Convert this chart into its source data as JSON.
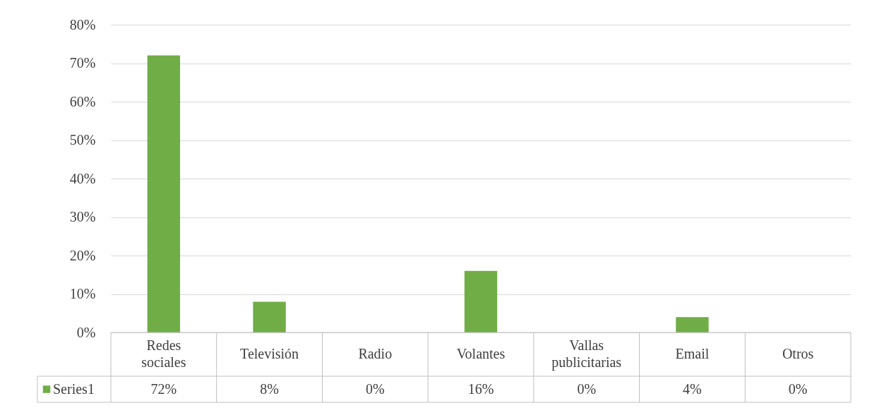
{
  "chart_data": {
    "type": "bar",
    "categories": [
      "Redes sociales",
      "Televisión",
      "Radio",
      "Volantes",
      "Vallas publicitarias",
      "Email",
      "Otros"
    ],
    "series": [
      {
        "name": "Series1",
        "color": "#70ad47",
        "values": [
          72,
          8,
          0,
          16,
          0,
          4,
          0
        ]
      }
    ],
    "value_labels": [
      "72%",
      "8%",
      "0%",
      "16%",
      "0%",
      "4%",
      "0%"
    ],
    "ylim": [
      0,
      80
    ],
    "yticks": [
      {
        "value": 0,
        "label": "0%"
      },
      {
        "value": 10,
        "label": "10%"
      },
      {
        "value": 20,
        "label": "20%"
      },
      {
        "value": 30,
        "label": "30%"
      },
      {
        "value": 40,
        "label": "40%"
      },
      {
        "value": 50,
        "label": "50%"
      },
      {
        "value": 60,
        "label": "60%"
      },
      {
        "value": 70,
        "label": "70%"
      },
      {
        "value": 80,
        "label": "80%"
      }
    ],
    "grid": true,
    "legend": "bottom"
  }
}
